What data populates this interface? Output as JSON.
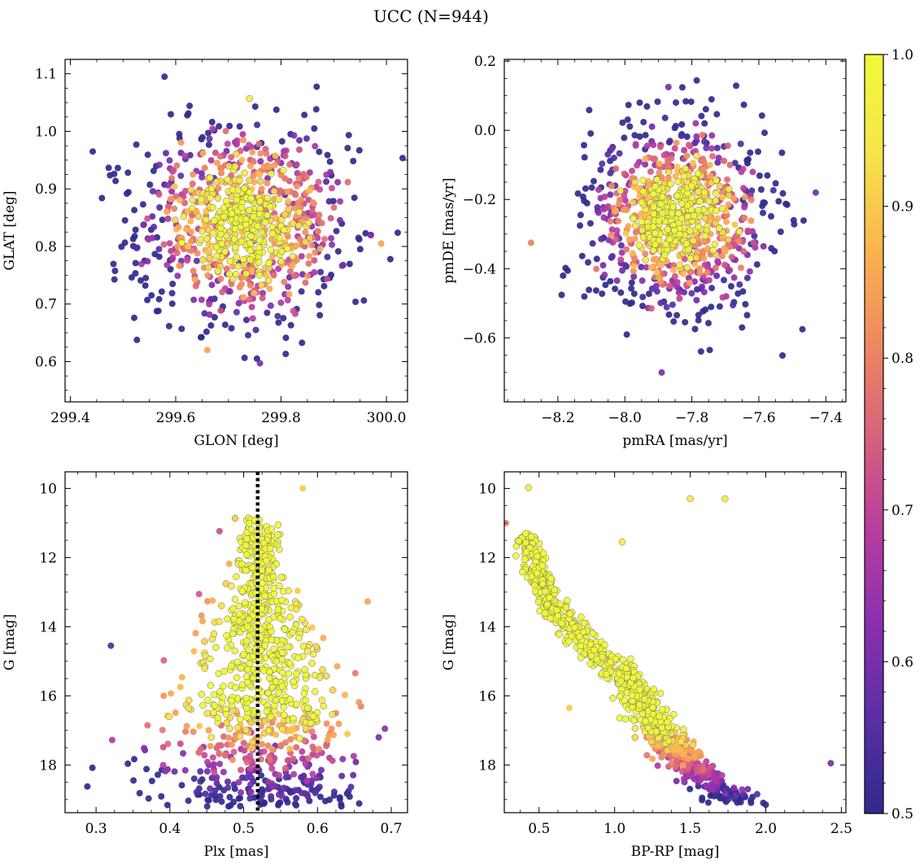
{
  "figure": {
    "title": "UCC (N=944)",
    "n_members": 944
  },
  "colorbar": {
    "colormap": "plasma",
    "range": [
      0.5,
      1.0
    ],
    "tick_labels": [
      "0.5",
      "0.6",
      "0.7",
      "0.8",
      "0.9",
      "1.0"
    ],
    "stops": [
      "#2f2a8c",
      "#5a2ea6",
      "#8b2fb0",
      "#b83d9e",
      "#d9627c",
      "#ef8a5f",
      "#fbb64e",
      "#f6e64a",
      "#f0f93a"
    ]
  },
  "styles": {
    "marker_edge": "#6e6e6e",
    "reference_line": "#000000"
  },
  "chart_data": [
    {
      "id": "glon-glat",
      "type": "scatter",
      "title": "",
      "xlabel": "GLON [deg]",
      "ylabel": "GLAT [deg]",
      "xlim": [
        299.39,
        300.04
      ],
      "ylim": [
        0.53,
        1.125
      ],
      "xticks": [
        299.4,
        299.6,
        299.8,
        300.0
      ],
      "xtick_labels": [
        "299.4",
        "299.6",
        "299.8",
        "300.0"
      ],
      "yticks": [
        0.6,
        0.7,
        0.8,
        0.9,
        1.0,
        1.1
      ],
      "ytick_labels": [
        "0.6",
        "0.7",
        "0.8",
        "0.9",
        "1.0",
        "1.1"
      ],
      "distribution": {
        "x_center": 299.73,
        "x_sigma": 0.1,
        "y_center": 0.84,
        "y_sigma": 0.085
      },
      "n_points": 944,
      "color_by": "membership probability",
      "examples": [
        {
          "x": 299.46,
          "y": 0.884,
          "p": 0.5
        },
        {
          "x": 299.66,
          "y": 0.62,
          "p": 0.85
        },
        {
          "x": 299.76,
          "y": 0.597,
          "p": 0.6
        },
        {
          "x": 299.74,
          "y": 1.057,
          "p": 0.95
        },
        {
          "x": 299.97,
          "y": 0.82,
          "p": 0.62
        },
        {
          "x": 299.99,
          "y": 0.805,
          "p": 0.85
        }
      ]
    },
    {
      "id": "pmra-pmde",
      "type": "scatter",
      "title": "",
      "xlabel": "pmRA [mas/yr]",
      "ylabel": "pmDE [mas/yr]",
      "xlim": [
        -8.36,
        -7.34
      ],
      "ylim": [
        -0.785,
        0.205
      ],
      "xticks": [
        -8.2,
        -8.0,
        -7.8,
        -7.6,
        -7.4
      ],
      "xtick_labels": [
        "−8.2",
        "−8.0",
        "−7.8",
        "−7.6",
        "−7.4"
      ],
      "yticks": [
        -0.6,
        -0.4,
        -0.2,
        0.0,
        0.2
      ],
      "ytick_labels": [
        "−0.6",
        "−0.4",
        "−0.2",
        "0.0",
        "0.2"
      ],
      "distribution": {
        "x_center": -7.84,
        "x_sigma": 0.13,
        "y_center": -0.25,
        "y_sigma": 0.13
      },
      "n_points": 944,
      "color_by": "membership probability",
      "examples": [
        {
          "x": -8.28,
          "y": -0.325,
          "p": 0.8
        },
        {
          "x": -7.87,
          "y": 0.125,
          "p": 0.6
        },
        {
          "x": -7.89,
          "y": -0.7,
          "p": 0.6
        },
        {
          "x": -7.47,
          "y": -0.575,
          "p": 0.5
        },
        {
          "x": -7.43,
          "y": -0.18,
          "p": 0.6
        }
      ]
    },
    {
      "id": "plx-g",
      "type": "scatter",
      "title": "",
      "xlabel": "Plx [mas]",
      "ylabel": "G [mag]",
      "xlim": [
        0.258,
        0.722
      ],
      "ylim": [
        19.38,
        9.52
      ],
      "y_inverted": true,
      "xticks": [
        0.3,
        0.4,
        0.5,
        0.6,
        0.7
      ],
      "xtick_labels": [
        "0.3",
        "0.4",
        "0.5",
        "0.6",
        "0.7"
      ],
      "yticks": [
        10,
        12,
        14,
        16,
        18
      ],
      "ytick_labels": [
        "10",
        "12",
        "14",
        "16",
        "18"
      ],
      "reference_line": {
        "x": 0.519,
        "style": "dotted"
      },
      "n_points": 944,
      "color_by": "membership probability",
      "examples": [
        {
          "x": 0.58,
          "y": 10.0,
          "p": 0.9
        },
        {
          "x": 0.668,
          "y": 13.27,
          "p": 0.85
        },
        {
          "x": 0.32,
          "y": 14.55,
          "p": 0.55
        },
        {
          "x": 0.295,
          "y": 18.08,
          "p": 0.5
        },
        {
          "x": 0.683,
          "y": 17.2,
          "p": 0.6
        },
        {
          "x": 0.52,
          "y": 14.5,
          "p": 1.0
        }
      ]
    },
    {
      "id": "bprp-g",
      "type": "scatter",
      "title": "",
      "xlabel": "BP-RP [mag]",
      "ylabel": "G [mag]",
      "xlim": [
        0.27,
        2.53
      ],
      "ylim": [
        19.38,
        9.52
      ],
      "y_inverted": true,
      "xticks": [
        0.5,
        1.0,
        1.5,
        2.0,
        2.5
      ],
      "xtick_labels": [
        "0.5",
        "1.0",
        "1.5",
        "2.0",
        "2.5"
      ],
      "yticks": [
        10,
        12,
        14,
        16,
        18
      ],
      "ytick_labels": [
        "10",
        "12",
        "14",
        "16",
        "18"
      ],
      "sequence": [
        [
          0.42,
          11.5
        ],
        [
          0.5,
          12.5
        ],
        [
          0.62,
          13.6
        ],
        [
          0.8,
          14.4
        ],
        [
          1.0,
          15.1
        ],
        [
          1.15,
          15.9
        ],
        [
          1.25,
          16.7
        ],
        [
          1.35,
          17.3
        ],
        [
          1.5,
          18.0
        ],
        [
          1.65,
          18.6
        ],
        [
          1.8,
          19.0
        ]
      ],
      "n_points": 944,
      "color_by": "membership probability",
      "examples": [
        {
          "x": 0.43,
          "y": 9.98,
          "p": 0.95
        },
        {
          "x": 0.28,
          "y": 11.0,
          "p": 0.8
        },
        {
          "x": 1.5,
          "y": 10.3,
          "p": 0.95
        },
        {
          "x": 1.73,
          "y": 10.3,
          "p": 0.95
        },
        {
          "x": 1.05,
          "y": 11.55,
          "p": 0.95
        },
        {
          "x": 2.43,
          "y": 17.95,
          "p": 0.6
        },
        {
          "x": 2.0,
          "y": 19.15,
          "p": 0.5
        },
        {
          "x": 0.7,
          "y": 16.35,
          "p": 0.9
        }
      ]
    }
  ]
}
